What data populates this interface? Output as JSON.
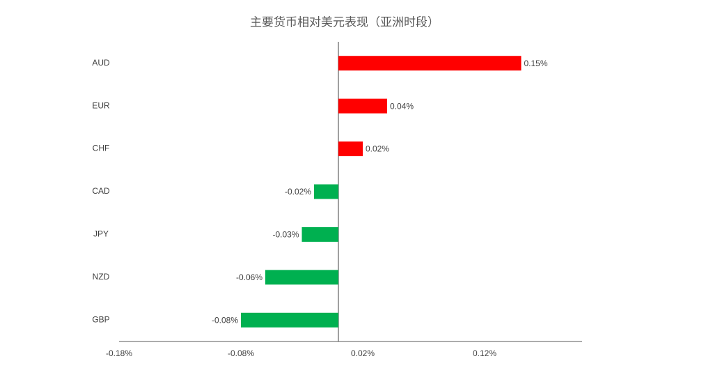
{
  "chart_data": {
    "type": "bar",
    "orientation": "horizontal",
    "title": "主要货币相对美元表现（亚洲时段）",
    "categories": [
      "AUD",
      "EUR",
      "CHF",
      "CAD",
      "JPY",
      "NZD",
      "GBP"
    ],
    "values": [
      0.15,
      0.04,
      0.02,
      -0.02,
      -0.03,
      -0.06,
      -0.08
    ],
    "value_labels": [
      "0.15%",
      "0.04%",
      "0.02%",
      "-0.02%",
      "-0.03%",
      "-0.06%",
      "-0.08%"
    ],
    "colors": [
      "#ff0000",
      "#ff0000",
      "#ff0000",
      "#00b050",
      "#00b050",
      "#00b050",
      "#00b050"
    ],
    "xlim": [
      -0.18,
      0.2
    ],
    "xticks": [
      {
        "value": -0.18,
        "label": "-0.18%"
      },
      {
        "value": -0.08,
        "label": "-0.08%"
      },
      {
        "value": 0.02,
        "label": "0.02%"
      },
      {
        "value": 0.12,
        "label": "0.12%"
      }
    ],
    "grid": false
  }
}
